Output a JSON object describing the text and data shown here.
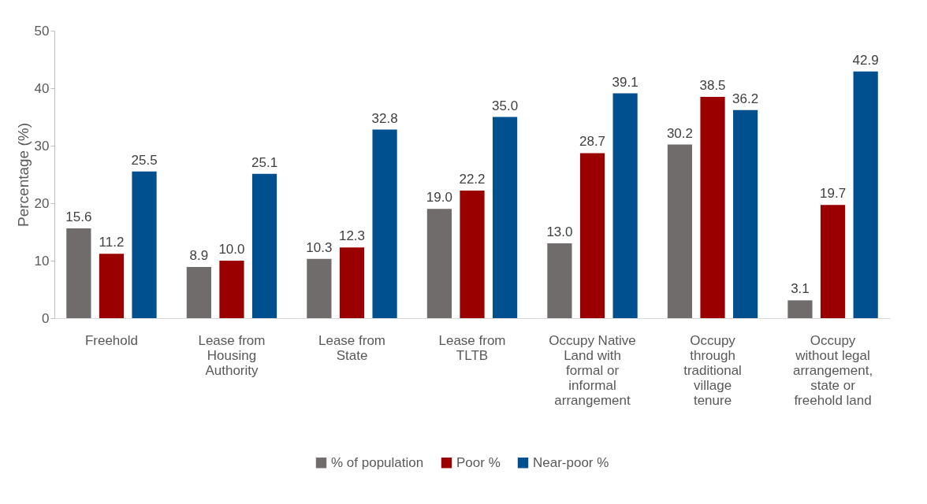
{
  "chart_data": {
    "type": "bar",
    "ylabel": "Percentage (%)",
    "categories": [
      "Freehold",
      "Lease from Housing Authority",
      "Lease from State",
      "Lease from TLTB",
      "Occupy Native Land with formal or informal arrangement",
      "Occupy through traditional village tenure",
      "Occupy without legal arrangement, state or freehold land"
    ],
    "series": [
      {
        "name": "% of population",
        "color": "#6f6c6b",
        "values": [
          15.6,
          8.9,
          10.3,
          19.0,
          13.0,
          30.2,
          3.1
        ],
        "value_labels": [
          "15.6",
          "8.9",
          "10.3",
          "19.0",
          "13.0",
          "30.2",
          "3.1"
        ]
      },
      {
        "name": "Poor %",
        "color": "#9a0000",
        "values": [
          11.2,
          10.0,
          12.3,
          22.2,
          28.7,
          38.5,
          19.7
        ],
        "value_labels": [
          "11.2",
          "10.0",
          "12.3",
          "22.2",
          "28.7",
          "38.5",
          "19.7"
        ]
      },
      {
        "name": "Near-poor %",
        "color": "#004f8e",
        "values": [
          25.5,
          25.1,
          32.8,
          35.0,
          39.1,
          36.2,
          42.9
        ],
        "value_labels": [
          "25.5",
          "25.1",
          "32.8",
          "35.0",
          "39.1",
          "36.2",
          "42.9"
        ]
      }
    ],
    "ylim": [
      0,
      50
    ],
    "yticks": [
      0,
      10,
      20,
      30,
      40,
      50
    ],
    "grid": false,
    "legend": "bottom"
  }
}
